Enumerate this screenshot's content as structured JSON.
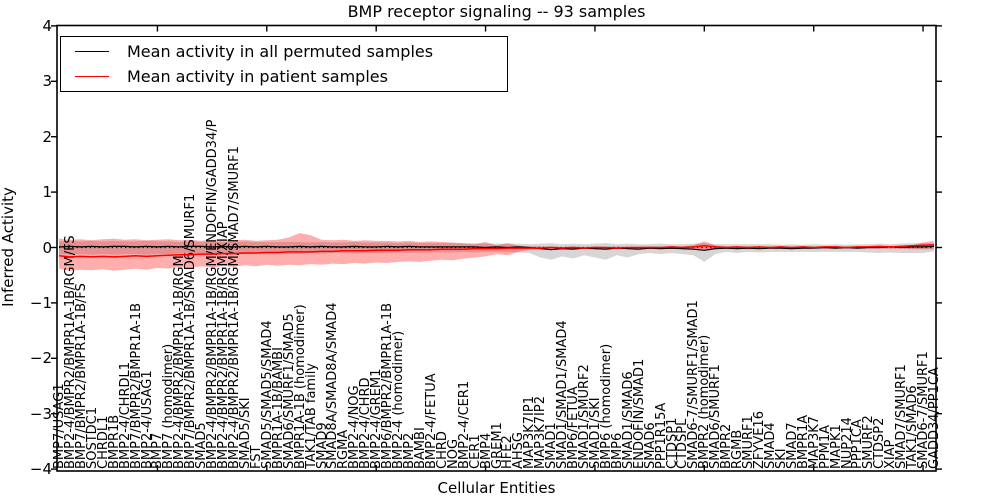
{
  "figure": {
    "title": "BMP receptor signaling -- 93 samples",
    "xlabel": "Cellular Entities",
    "ylabel": "Inferred Activity"
  },
  "legend": {
    "items": [
      {
        "label": "Mean activity in all permuted samples",
        "color": "#000000"
      },
      {
        "label": "Mean activity in patient samples",
        "color": "#ff0000"
      }
    ]
  },
  "y_axis": {
    "tick_labels": [
      "4",
      "3",
      "2",
      "1",
      "0",
      "−1",
      "−2",
      "−3",
      "−4"
    ],
    "tick_values": [
      4,
      3,
      2,
      1,
      0,
      -1,
      -2,
      -3,
      -4
    ]
  },
  "chart_data": {
    "type": "line",
    "title": "BMP receptor signaling -- 93 samples",
    "xlabel": "Cellular Entities",
    "ylabel": "Inferred Activity",
    "ylim": [
      -4,
      4
    ],
    "grid": false,
    "legend_position": "upper left",
    "zero_line": {
      "style": "dotted",
      "color": "#000000",
      "y": 0
    },
    "categories": [
      "BMP7/USAG1",
      "BMP2-4/BMPR2/BMPR1A-1B/RGM/FS",
      "BMP7/BMPR2/BMPR1A-1B/FS",
      "SOSTDC1",
      "CHRDL1",
      "BMPR1B",
      "BMP2-4/CHRDL1",
      "BMP7/BMPR2/BMPR1A-1B",
      "BMP2-4/USAG1",
      "BMP7",
      "BMP7 (homodimer)",
      "BMP2-4/BMPR2/BMPR1A-1B/RGM",
      "BMP7/BMPR2/BMPR1A-1B/SMAD6/SMURF1",
      "SMAD5",
      "BMP2-4/BMPR2/BMPR1A-1B/RGM/ENDOFIN/GADD34/P",
      "BMP2-4/BMPR2/BMPR1A-1B/RGM/XIAP",
      "BMP2-4/BMPR2/BMPR1A-1B/RGM/SMAD7/SMURF1",
      "SMAD5/SKI",
      "FST",
      "SMAD5/SMAD5/SMAD4",
      "BMPR1A-1B/BAMBI",
      "SMAD6/SMURF1/SMAD5",
      "BMPR1A-1B (homodimer)",
      "TAK1/TAB family",
      "SMAD9",
      "SMAD8A/SMAD8A/SMAD4",
      "RGMA",
      "BMP2-4/NOG",
      "BMP2-4/CHRD",
      "BMP2-4/GREM1",
      "BMP6/BMPR2/BMPR1A-1B",
      "BMP2-4 (homodimer)",
      "BMP2",
      "BAMBI",
      "BMP2-4/FETUA",
      "CHRD",
      "NOG",
      "BMP2-4/CER1",
      "CER1",
      "BMP4",
      "GREM1",
      "HFE2",
      "AHSG",
      "MAP3K7IP1",
      "MAP3K7IP2",
      "SMAD1",
      "SMAD1/SMAD1/SMAD4",
      "BMP6/FETUA",
      "SMAD1/SMURF2",
      "SMAD1/SKI",
      "BMP6 (homodimer)",
      "BMP6",
      "SMAD1/SMAD6",
      "ENDOFIN/SMAD1",
      "SMAD6",
      "PPP1R15A",
      "CTDSP1",
      "CTDSPL",
      "SMAD6-7/SMURF1/SMAD1",
      "BMPR2 (homodimer)",
      "SMAD6/SMURF1",
      "BMPR2",
      "RGMB",
      "SMURF1",
      "ZFYVE16",
      "SMAD4",
      "SKI",
      "SMAD7",
      "BMPR1A",
      "MAP3K7",
      "PPM1A",
      "MAPK1",
      "NUP214",
      "PPP1CA",
      "SMURF2",
      "CTDSP2",
      "XIAP",
      "SMAD7/SMURF1",
      "TAK1/SMAD6",
      "SMAD6-7/SMURF1",
      "GADD34/PP1CA"
    ],
    "series": [
      {
        "name": "Mean activity in all permuted samples",
        "color": "#000000",
        "values": [
          0.01,
          0.02,
          0.01,
          0.02,
          0.01,
          0.02,
          0.02,
          0.01,
          0.02,
          0.01,
          0.02,
          0.01,
          0.02,
          0.02,
          0.01,
          0.02,
          0.01,
          0.02,
          0.01,
          0.02,
          0.01,
          0.01,
          0.02,
          0.01,
          0.02,
          0.01,
          0.01,
          0.02,
          0.01,
          0.01,
          0.02,
          0.01,
          0.02,
          0.01,
          0.01,
          0.01,
          0.01,
          0.01,
          0.01,
          0.0,
          0.01,
          0.0,
          0.01,
          0.0,
          -0.02,
          -0.04,
          -0.02,
          -0.03,
          -0.01,
          -0.02,
          -0.03,
          -0.01,
          -0.02,
          -0.03,
          -0.01,
          -0.02,
          -0.01,
          -0.02,
          -0.03,
          -0.05,
          -0.02,
          -0.01,
          -0.02,
          -0.01,
          -0.02,
          -0.01,
          -0.01,
          -0.02,
          -0.01,
          -0.01,
          0.0,
          -0.01,
          0.0,
          -0.01,
          0.0,
          0.0,
          0.01,
          0.0,
          0.01,
          0.01,
          0.02
        ]
      },
      {
        "name": "Mean activity in patient samples",
        "color": "#ff0000",
        "values": [
          -0.15,
          -0.17,
          -0.16,
          -0.17,
          -0.16,
          -0.17,
          -0.16,
          -0.15,
          -0.16,
          -0.15,
          -0.14,
          -0.13,
          -0.13,
          -0.12,
          -0.12,
          -0.11,
          -0.11,
          -0.1,
          -0.1,
          -0.09,
          -0.09,
          -0.08,
          -0.08,
          -0.08,
          -0.07,
          -0.07,
          -0.06,
          -0.06,
          -0.06,
          -0.05,
          -0.05,
          -0.05,
          -0.04,
          -0.04,
          -0.04,
          -0.03,
          -0.03,
          -0.03,
          -0.02,
          -0.02,
          -0.02,
          -0.01,
          -0.01,
          -0.01,
          -0.01,
          0.0,
          -0.01,
          0.0,
          -0.01,
          0.0,
          0.0,
          -0.01,
          0.0,
          0.0,
          0.0,
          0.0,
          0.01,
          0.0,
          0.01,
          0.03,
          0.01,
          0.0,
          0.01,
          0.0,
          0.01,
          0.0,
          0.01,
          0.0,
          0.01,
          0.0,
          0.01,
          0.01,
          0.0,
          0.01,
          0.01,
          0.02,
          0.01,
          0.02,
          0.03,
          0.04,
          0.05
        ]
      }
    ],
    "bands": [
      {
        "name": "permuted samples range",
        "color": "#999999",
        "opacity": 0.4,
        "upper": [
          0.11,
          0.12,
          0.11,
          0.12,
          0.11,
          0.12,
          0.11,
          0.11,
          0.12,
          0.11,
          0.11,
          0.1,
          0.11,
          0.1,
          0.11,
          0.1,
          0.1,
          0.11,
          0.1,
          0.1,
          0.1,
          0.1,
          0.1,
          0.09,
          0.1,
          0.09,
          0.09,
          0.1,
          0.09,
          0.09,
          0.09,
          0.08,
          0.09,
          0.08,
          0.08,
          0.08,
          0.08,
          0.07,
          0.08,
          0.07,
          0.07,
          0.07,
          0.07,
          0.06,
          0.07,
          0.08,
          0.06,
          0.07,
          0.06,
          0.07,
          0.08,
          0.06,
          0.07,
          0.06,
          0.06,
          0.07,
          0.06,
          0.06,
          0.07,
          0.08,
          0.06,
          0.06,
          0.06,
          0.06,
          0.06,
          0.06,
          0.05,
          0.06,
          0.05,
          0.06,
          0.05,
          0.06,
          0.05,
          0.06,
          0.06,
          0.07,
          0.06,
          0.07,
          0.08,
          0.08,
          0.07
        ],
        "lower": [
          -0.12,
          -0.13,
          -0.12,
          -0.13,
          -0.12,
          -0.13,
          -0.12,
          -0.12,
          -0.13,
          -0.12,
          -0.12,
          -0.11,
          -0.12,
          -0.11,
          -0.12,
          -0.11,
          -0.11,
          -0.12,
          -0.11,
          -0.11,
          -0.11,
          -0.11,
          -0.11,
          -0.1,
          -0.11,
          -0.1,
          -0.1,
          -0.11,
          -0.1,
          -0.1,
          -0.1,
          -0.09,
          -0.1,
          -0.09,
          -0.09,
          -0.09,
          -0.09,
          -0.08,
          -0.09,
          -0.08,
          -0.08,
          -0.08,
          -0.09,
          -0.1,
          -0.18,
          -0.22,
          -0.16,
          -0.2,
          -0.14,
          -0.18,
          -0.22,
          -0.14,
          -0.18,
          -0.12,
          -0.1,
          -0.12,
          -0.1,
          -0.12,
          -0.14,
          -0.26,
          -0.12,
          -0.08,
          -0.1,
          -0.08,
          -0.09,
          -0.08,
          -0.08,
          -0.08,
          -0.08,
          -0.08,
          -0.08,
          -0.08,
          -0.08,
          -0.08,
          -0.09,
          -0.1,
          -0.09,
          -0.1,
          -0.1,
          -0.1,
          -0.07
        ]
      },
      {
        "name": "patient samples range",
        "color": "#ff0000",
        "opacity": 0.32,
        "upper": [
          0.16,
          0.14,
          0.15,
          0.13,
          0.15,
          0.16,
          0.14,
          0.15,
          0.13,
          0.14,
          0.15,
          0.13,
          0.14,
          0.12,
          0.14,
          0.15,
          0.13,
          0.14,
          0.12,
          0.13,
          0.14,
          0.18,
          0.26,
          0.22,
          0.14,
          0.13,
          0.14,
          0.12,
          0.13,
          0.12,
          0.12,
          0.11,
          0.12,
          0.1,
          0.11,
          0.1,
          0.09,
          0.08,
          0.06,
          0.1,
          0.04,
          0.08,
          0.03,
          0.02,
          0.02,
          0.02,
          0.01,
          0.02,
          0.01,
          0.02,
          0.01,
          0.02,
          0.01,
          0.01,
          0.02,
          0.01,
          0.01,
          0.02,
          0.04,
          0.11,
          0.04,
          0.02,
          0.01,
          0.02,
          0.01,
          0.02,
          0.01,
          0.01,
          0.02,
          0.01,
          0.01,
          0.02,
          0.01,
          0.02,
          0.01,
          0.02,
          0.02,
          0.03,
          0.04,
          0.09,
          0.12
        ],
        "lower": [
          -0.38,
          -0.42,
          -0.4,
          -0.41,
          -0.39,
          -0.42,
          -0.4,
          -0.38,
          -0.4,
          -0.37,
          -0.38,
          -0.35,
          -0.37,
          -0.34,
          -0.36,
          -0.33,
          -0.35,
          -0.32,
          -0.34,
          -0.31,
          -0.33,
          -0.31,
          -0.32,
          -0.3,
          -0.31,
          -0.29,
          -0.3,
          -0.28,
          -0.29,
          -0.27,
          -0.28,
          -0.26,
          -0.25,
          -0.26,
          -0.24,
          -0.22,
          -0.23,
          -0.2,
          -0.18,
          -0.16,
          -0.12,
          -0.14,
          -0.08,
          -0.04,
          -0.03,
          -0.03,
          -0.02,
          -0.03,
          -0.02,
          -0.03,
          -0.02,
          -0.03,
          -0.02,
          -0.02,
          -0.03,
          -0.02,
          -0.02,
          -0.03,
          -0.03,
          -0.06,
          -0.03,
          -0.02,
          -0.02,
          -0.03,
          -0.02,
          -0.02,
          -0.02,
          -0.02,
          -0.02,
          -0.02,
          -0.02,
          -0.02,
          -0.02,
          -0.02,
          -0.02,
          -0.02,
          -0.02,
          -0.02,
          -0.03,
          -0.03,
          -0.03
        ]
      }
    ]
  }
}
